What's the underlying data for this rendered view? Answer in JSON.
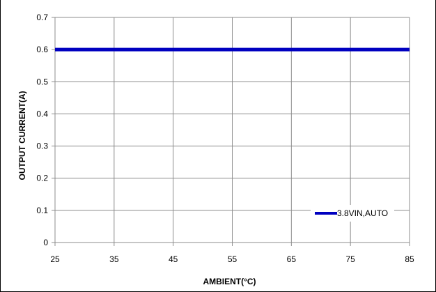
{
  "chart_data": {
    "type": "line",
    "title": "",
    "xlabel": "AMBIENT(°C)",
    "ylabel": "OUTPUT CURRENT(A)",
    "xlim": [
      25,
      85
    ],
    "ylim": [
      0,
      0.7
    ],
    "xticks": [
      "25",
      "35",
      "45",
      "55",
      "65",
      "75",
      "85"
    ],
    "yticks": [
      "0",
      "0.1",
      "0.2",
      "0.3",
      "0.4",
      "0.5",
      "0.6",
      "0.7"
    ],
    "grid": true,
    "legend_position": "bottom-right",
    "series": [
      {
        "name": "3.8VIN,AUTO",
        "color": "#0000c0",
        "x": [
          25,
          85
        ],
        "y": [
          0.6,
          0.6
        ]
      }
    ]
  }
}
